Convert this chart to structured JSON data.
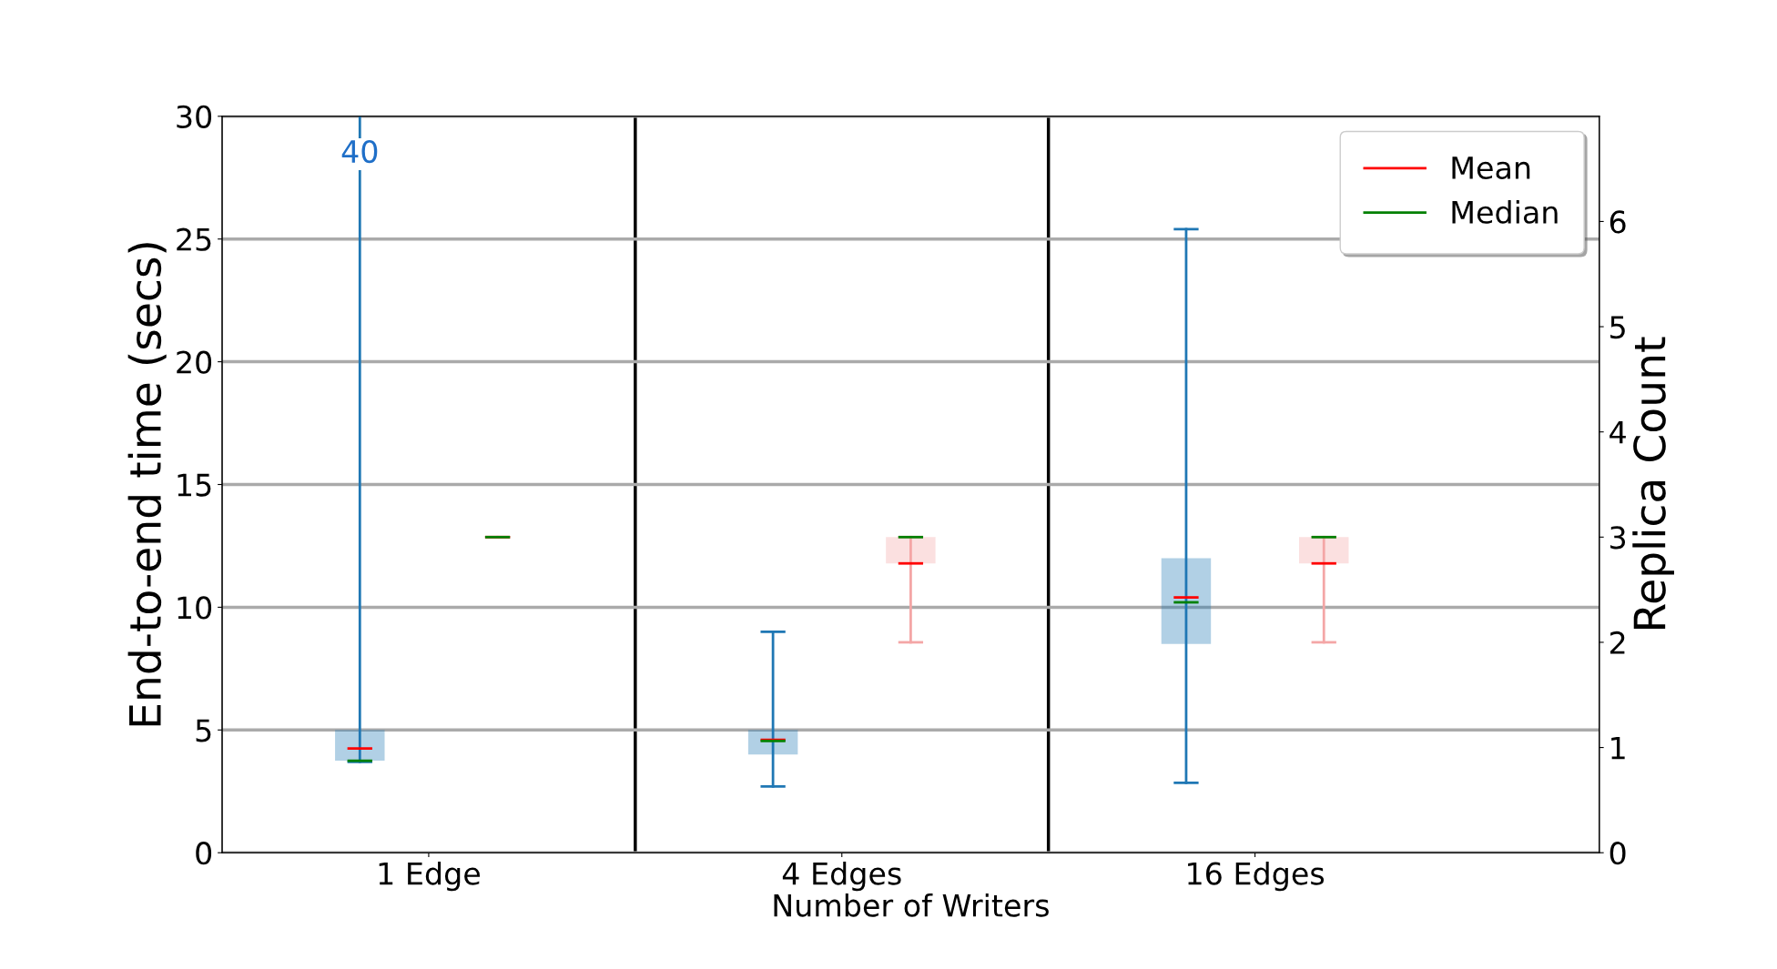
{
  "chart_data": {
    "type": "box",
    "xlabel": "Number of Writers",
    "ylabel": "End-to-end time (secs)",
    "y2label": "Replica Count",
    "categories": [
      "1 Edge",
      "4 Edges",
      "16 Edges"
    ],
    "ylim": [
      0,
      30
    ],
    "yticks": [
      0,
      5,
      10,
      15,
      20,
      25,
      30
    ],
    "y2lim": [
      0,
      7
    ],
    "y2ticks": [
      0,
      1,
      2,
      3,
      4,
      5,
      6
    ],
    "grid": true,
    "legend": "top right",
    "series": [
      {
        "color": "#1f77b4",
        "boxes": [
          {
            "low": 3.7,
            "q1": 3.75,
            "median": 3.75,
            "q3": 5.0,
            "high": null,
            "mean": 4.25
          },
          {
            "low": 2.7,
            "q1": 4.0,
            "median": 4.55,
            "q3": 5.0,
            "high": 9.0,
            "mean": 4.6
          },
          {
            "low": 2.85,
            "q1": 8.5,
            "median": 10.2,
            "q3": 12.0,
            "high": 25.4,
            "mean": 10.4
          }
        ]
      },
      {
        "color": "#f4a6a6",
        "axis": "y2",
        "boxes": [
          {
            "low": 3,
            "q1": 3,
            "median": 3,
            "q3": 3,
            "high": 3,
            "mean": 3
          },
          {
            "low": 2,
            "q1": 2.75,
            "median": 3,
            "q3": 3,
            "high": 3,
            "mean": 2.75
          },
          {
            "low": 2,
            "q1": 2.75,
            "median": 3,
            "q3": 3,
            "high": 3,
            "mean": 2.75
          }
        ]
      },
      {
        "type": "line",
        "name": "Mean",
        "color": "#ff0000",
        "values": [
          null,
          null,
          null
        ]
      },
      {
        "type": "line",
        "name": "Median",
        "color": "#008000",
        "values": [
          null,
          null,
          null
        ]
      }
    ],
    "annotations": [
      "40"
    ]
  }
}
